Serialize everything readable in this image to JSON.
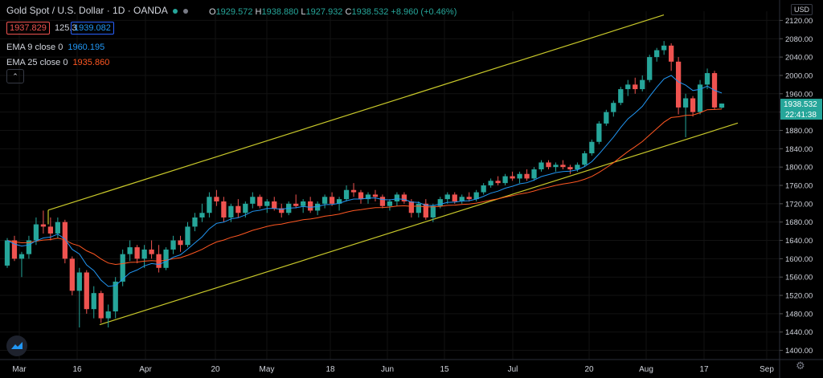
{
  "header": {
    "symbol": "Gold Spot / U.S. Dollar · 1D · OANDA",
    "open_label": "O",
    "open": "1929.572",
    "high_label": "H",
    "high": "1938.880",
    "low_label": "L",
    "low": "1927.932",
    "close_label": "C",
    "close": "1938.532",
    "change": "+8.960 (+0.46%)",
    "bid": "1937.829",
    "spread": "125.3",
    "ask": "1939.082"
  },
  "indicators": {
    "ema9_label": "EMA 9 close 0",
    "ema9_value": "1960.195",
    "ema25_label": "EMA 25 close 0",
    "ema25_value": "1935.860",
    "collapse_icon": "chevron-up-icon"
  },
  "currency_label": "USD",
  "colors": {
    "bg": "#000000",
    "up": "#26a69a",
    "down": "#ef5350",
    "ema9": "#2196f3",
    "ema25": "#ff5722",
    "channel": "#c8c82a",
    "text": "#d1d4dc",
    "grid": "#121212",
    "price_tag": "#26a69a"
  },
  "chart_data": {
    "type": "candlestick",
    "title": "Gold Spot / U.S. Dollar · 1D · OANDA",
    "x_tick_labels": [
      "Mar",
      "16",
      "Apr",
      "20",
      "May",
      "18",
      "Jun",
      "15",
      "Jul",
      "20",
      "Aug",
      "17",
      "Sep"
    ],
    "y_ticks": [
      1400,
      1440,
      1480,
      1520,
      1560,
      1600,
      1640,
      1680,
      1720,
      1760,
      1800,
      1840,
      1880,
      1920,
      1960,
      2000,
      2040,
      2080,
      2120
    ],
    "ylim": [
      1380,
      2140
    ],
    "last_price": "1938.532",
    "countdown": "22:41:38",
    "candles_ohlc": [
      [
        1585,
        1645,
        1580,
        1640
      ],
      [
        1640,
        1650,
        1595,
        1600
      ],
      [
        1600,
        1615,
        1560,
        1610
      ],
      [
        1610,
        1650,
        1600,
        1640
      ],
      [
        1640,
        1690,
        1630,
        1675
      ],
      [
        1675,
        1705,
        1655,
        1670
      ],
      [
        1670,
        1690,
        1640,
        1655
      ],
      [
        1655,
        1690,
        1645,
        1680
      ],
      [
        1680,
        1685,
        1590,
        1600
      ],
      [
        1600,
        1605,
        1520,
        1530
      ],
      [
        1530,
        1580,
        1450,
        1570
      ],
      [
        1570,
        1575,
        1480,
        1490
      ],
      [
        1490,
        1540,
        1470,
        1525
      ],
      [
        1525,
        1530,
        1460,
        1470
      ],
      [
        1470,
        1500,
        1450,
        1485
      ],
      [
        1485,
        1560,
        1470,
        1550
      ],
      [
        1550,
        1620,
        1540,
        1610
      ],
      [
        1610,
        1640,
        1595,
        1625
      ],
      [
        1625,
        1630,
        1590,
        1600
      ],
      [
        1600,
        1630,
        1580,
        1620
      ],
      [
        1620,
        1640,
        1600,
        1610
      ],
      [
        1610,
        1630,
        1570,
        1580
      ],
      [
        1580,
        1625,
        1575,
        1620
      ],
      [
        1620,
        1650,
        1610,
        1640
      ],
      [
        1640,
        1650,
        1615,
        1630
      ],
      [
        1630,
        1680,
        1625,
        1670
      ],
      [
        1670,
        1700,
        1660,
        1690
      ],
      [
        1690,
        1720,
        1680,
        1700
      ],
      [
        1700,
        1745,
        1690,
        1735
      ],
      [
        1735,
        1750,
        1715,
        1725
      ],
      [
        1725,
        1735,
        1680,
        1690
      ],
      [
        1690,
        1720,
        1680,
        1715
      ],
      [
        1715,
        1730,
        1690,
        1700
      ],
      [
        1700,
        1725,
        1690,
        1720
      ],
      [
        1720,
        1745,
        1710,
        1735
      ],
      [
        1735,
        1740,
        1710,
        1715
      ],
      [
        1715,
        1730,
        1700,
        1725
      ],
      [
        1725,
        1735,
        1705,
        1710
      ],
      [
        1710,
        1720,
        1690,
        1700
      ],
      [
        1700,
        1725,
        1695,
        1720
      ],
      [
        1720,
        1740,
        1710,
        1715
      ],
      [
        1715,
        1730,
        1700,
        1725
      ],
      [
        1725,
        1735,
        1700,
        1705
      ],
      [
        1705,
        1725,
        1695,
        1720
      ],
      [
        1720,
        1740,
        1710,
        1735
      ],
      [
        1735,
        1745,
        1715,
        1720
      ],
      [
        1720,
        1735,
        1705,
        1730
      ],
      [
        1730,
        1760,
        1725,
        1750
      ],
      [
        1750,
        1765,
        1735,
        1745
      ],
      [
        1745,
        1750,
        1720,
        1730
      ],
      [
        1730,
        1745,
        1720,
        1740
      ],
      [
        1740,
        1750,
        1725,
        1735
      ],
      [
        1735,
        1740,
        1710,
        1715
      ],
      [
        1715,
        1730,
        1705,
        1725
      ],
      [
        1725,
        1745,
        1715,
        1740
      ],
      [
        1740,
        1745,
        1720,
        1725
      ],
      [
        1725,
        1730,
        1690,
        1700
      ],
      [
        1700,
        1725,
        1690,
        1720
      ],
      [
        1720,
        1730,
        1685,
        1690
      ],
      [
        1690,
        1720,
        1680,
        1715
      ],
      [
        1715,
        1735,
        1710,
        1730
      ],
      [
        1730,
        1745,
        1720,
        1740
      ],
      [
        1740,
        1745,
        1720,
        1725
      ],
      [
        1725,
        1740,
        1720,
        1735
      ],
      [
        1735,
        1745,
        1725,
        1730
      ],
      [
        1730,
        1750,
        1725,
        1745
      ],
      [
        1745,
        1765,
        1740,
        1760
      ],
      [
        1760,
        1775,
        1755,
        1770
      ],
      [
        1770,
        1780,
        1760,
        1765
      ],
      [
        1765,
        1785,
        1760,
        1780
      ],
      [
        1780,
        1790,
        1770,
        1775
      ],
      [
        1775,
        1790,
        1765,
        1785
      ],
      [
        1785,
        1795,
        1770,
        1775
      ],
      [
        1775,
        1800,
        1770,
        1795
      ],
      [
        1795,
        1815,
        1790,
        1810
      ],
      [
        1810,
        1815,
        1795,
        1800
      ],
      [
        1800,
        1810,
        1790,
        1805
      ],
      [
        1805,
        1815,
        1795,
        1800
      ],
      [
        1800,
        1805,
        1785,
        1795
      ],
      [
        1795,
        1810,
        1790,
        1805
      ],
      [
        1805,
        1835,
        1800,
        1830
      ],
      [
        1830,
        1860,
        1825,
        1855
      ],
      [
        1855,
        1900,
        1850,
        1895
      ],
      [
        1895,
        1925,
        1890,
        1920
      ],
      [
        1920,
        1945,
        1910,
        1940
      ],
      [
        1940,
        1975,
        1935,
        1970
      ],
      [
        1970,
        1990,
        1955,
        1980
      ],
      [
        1980,
        1995,
        1960,
        1970
      ],
      [
        1970,
        2000,
        1965,
        1990
      ],
      [
        1990,
        2045,
        1985,
        2040
      ],
      [
        2040,
        2060,
        2030,
        2055
      ],
      [
        2055,
        2075,
        2045,
        2065
      ],
      [
        2065,
        2070,
        2010,
        2030
      ],
      [
        2030,
        2040,
        1915,
        1930
      ],
      [
        1930,
        1960,
        1865,
        1950
      ],
      [
        1950,
        1955,
        1910,
        1920
      ],
      [
        1920,
        1990,
        1915,
        1980
      ],
      [
        1980,
        2015,
        1970,
        2005
      ],
      [
        2005,
        2010,
        1925,
        1930
      ],
      [
        1929.572,
        1938.88,
        1927.932,
        1938.532
      ]
    ]
  }
}
